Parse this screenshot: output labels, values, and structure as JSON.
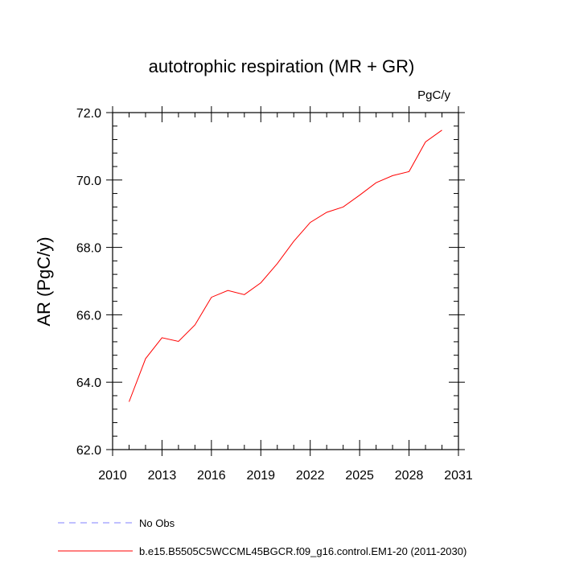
{
  "chart_data": {
    "type": "line",
    "title": "autotrophic respiration (MR + GR)",
    "units": "PgC/y",
    "ylabel": "AR  (PgC/y)",
    "xlabel": "",
    "xlim": [
      2010,
      2031
    ],
    "ylim": [
      62.0,
      72.0
    ],
    "x_ticks": [
      "2010",
      "2013",
      "2016",
      "2019",
      "2022",
      "2025",
      "2028",
      "2031"
    ],
    "y_ticks": [
      "62.0",
      "64.0",
      "66.0",
      "68.0",
      "70.0",
      "72.0"
    ],
    "grid": false,
    "legend_position": "bottom-left",
    "series": [
      {
        "name": "b.e15.B5505C5WCCML45BGCR.f09_g16.control.EM1-20 (2011-2030)",
        "color": "#ff0000",
        "style": "solid",
        "x": [
          2011,
          2012,
          2013,
          2014,
          2015,
          2016,
          2017,
          2018,
          2019,
          2020,
          2021,
          2022,
          2023,
          2024,
          2025,
          2026,
          2027,
          2028,
          2029,
          2030
        ],
        "y": [
          63.42,
          64.7,
          65.32,
          65.21,
          65.7,
          66.52,
          66.72,
          66.6,
          66.95,
          67.52,
          68.18,
          68.74,
          69.04,
          69.2,
          69.55,
          69.92,
          70.13,
          70.25,
          71.13,
          71.48
        ]
      }
    ],
    "legend": [
      {
        "label": "No Obs",
        "color": "#8080ff",
        "style": "dashed"
      },
      {
        "label": "b.e15.B5505C5WCCML45BGCR.f09_g16.control.EM1-20 (2011-2030)",
        "color": "#ff0000",
        "style": "solid"
      }
    ]
  }
}
